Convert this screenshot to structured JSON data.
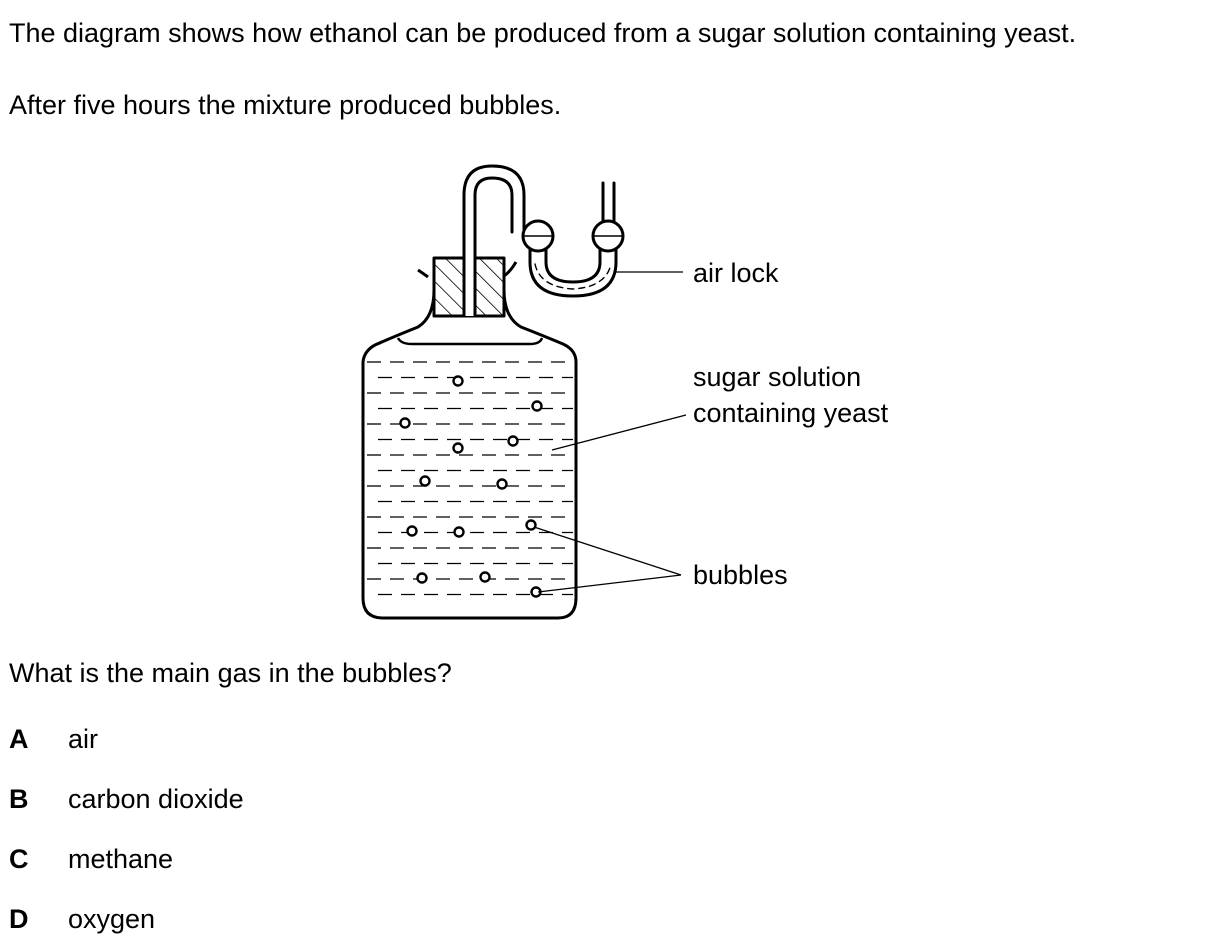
{
  "intro": {
    "line1": "The diagram shows how ethanol can be produced from a sugar solution containing yeast.",
    "line2": "After five hours the mixture produced bubbles."
  },
  "diagram": {
    "labels": {
      "air_lock": "air lock",
      "sugar_line1": "sugar solution",
      "sugar_line2": "containing yeast",
      "bubbles": "bubbles"
    }
  },
  "question": "What is the main gas in the bubbles?",
  "options": [
    {
      "letter": "A",
      "text": "air"
    },
    {
      "letter": "B",
      "text": "carbon dioxide"
    },
    {
      "letter": "C",
      "text": "methane"
    },
    {
      "letter": "D",
      "text": "oxygen"
    }
  ]
}
